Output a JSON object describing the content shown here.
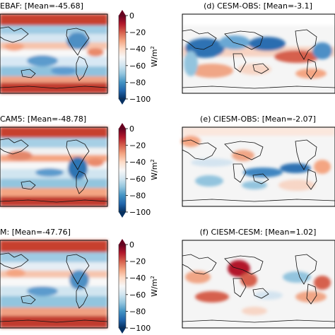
{
  "figure": {
    "colorbar": {
      "ticks": [
        "0",
        "−20",
        "−40",
        "−60",
        "−80",
        "−100"
      ],
      "unit_label": "W/m",
      "unit_exponent": "2",
      "colors": [
        "#053061",
        "#2166ac",
        "#4393c3",
        "#92c5de",
        "#d1e5f0",
        "#f7f7f7",
        "#fddbc7",
        "#f4a582",
        "#d6604d",
        "#b2182b",
        "#67001f"
      ]
    },
    "diff_colors": {
      "positive": [
        "#f7d6c6",
        "#f0a686",
        "#d6604d",
        "#b2182b"
      ],
      "negative": [
        "#d4e4f0",
        "#93c4de",
        "#4393c3",
        "#2166ac"
      ],
      "land_outline": "#111111"
    }
  },
  "chart_data": [
    {
      "type": "heatmap",
      "title": "EBAF: [Mean=-45.68]",
      "mean": -45.68,
      "colorbar": {
        "range": [
          -100,
          0
        ],
        "ticks": [
          0,
          -20,
          -40,
          -60,
          -80,
          -100
        ],
        "label": "W/m2"
      }
    },
    {
      "type": "heatmap",
      "title": "CAM5: [Mean=-48.78]",
      "mean": -48.78,
      "colorbar": {
        "range": [
          -100,
          0
        ],
        "ticks": [
          0,
          -20,
          -40,
          -60,
          -80,
          -100
        ],
        "label": "W/m2"
      }
    },
    {
      "type": "heatmap",
      "title": "M: [Mean=-47.76]",
      "mean": -47.76,
      "colorbar": {
        "range": [
          -100,
          0
        ],
        "ticks": [
          0,
          -20,
          -40,
          -60,
          -80,
          -100
        ],
        "label": "W/m2"
      }
    },
    {
      "type": "heatmap",
      "title": "(d) CESM-OBS: [Mean=-3.1]",
      "mean": -3.1
    },
    {
      "type": "heatmap",
      "title": "(e) CIESM-OBS: [Mean=-2.07]",
      "mean": -2.07
    },
    {
      "type": "heatmap",
      "title": "(f) CIESM-CESM: [Mean=1.02]",
      "mean": 1.02
    }
  ]
}
